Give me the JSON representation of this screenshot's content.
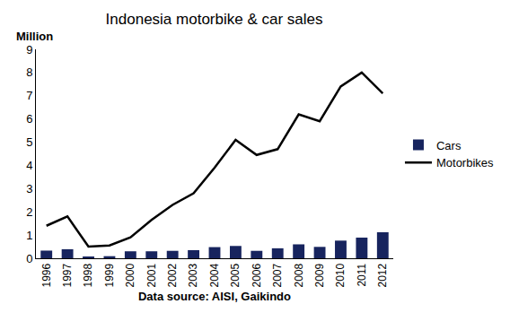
{
  "chart_data": {
    "type": "bar",
    "title": "Indonesia motorbike & car sales",
    "ylabel": "Million",
    "xlabel": "Data source: AISI, Gaikindo",
    "categories": [
      "1996",
      "1997",
      "1998",
      "1999",
      "2000",
      "2001",
      "2002",
      "2003",
      "2004",
      "2005",
      "2006",
      "2007",
      "2008",
      "2009",
      "2010",
      "2011",
      "2012"
    ],
    "series": [
      {
        "name": "Cars",
        "type": "bar",
        "color": "#17245e",
        "values": [
          0.33,
          0.39,
          0.06,
          0.09,
          0.3,
          0.3,
          0.32,
          0.35,
          0.48,
          0.53,
          0.32,
          0.43,
          0.6,
          0.49,
          0.76,
          0.89,
          1.12
        ]
      },
      {
        "name": "Motorbikes",
        "type": "line",
        "color": "#000000",
        "line_style": "solid",
        "values": [
          1.4,
          1.8,
          0.5,
          0.55,
          0.9,
          1.65,
          2.3,
          2.8,
          3.9,
          5.1,
          4.45,
          4.7,
          6.2,
          5.9,
          7.4,
          8.0,
          7.1
        ]
      }
    ],
    "ylim": [
      0,
      9
    ],
    "yticks": [
      0,
      1,
      2,
      3,
      4,
      5,
      6,
      7,
      8,
      9
    ],
    "grid": false,
    "legend": "right"
  }
}
